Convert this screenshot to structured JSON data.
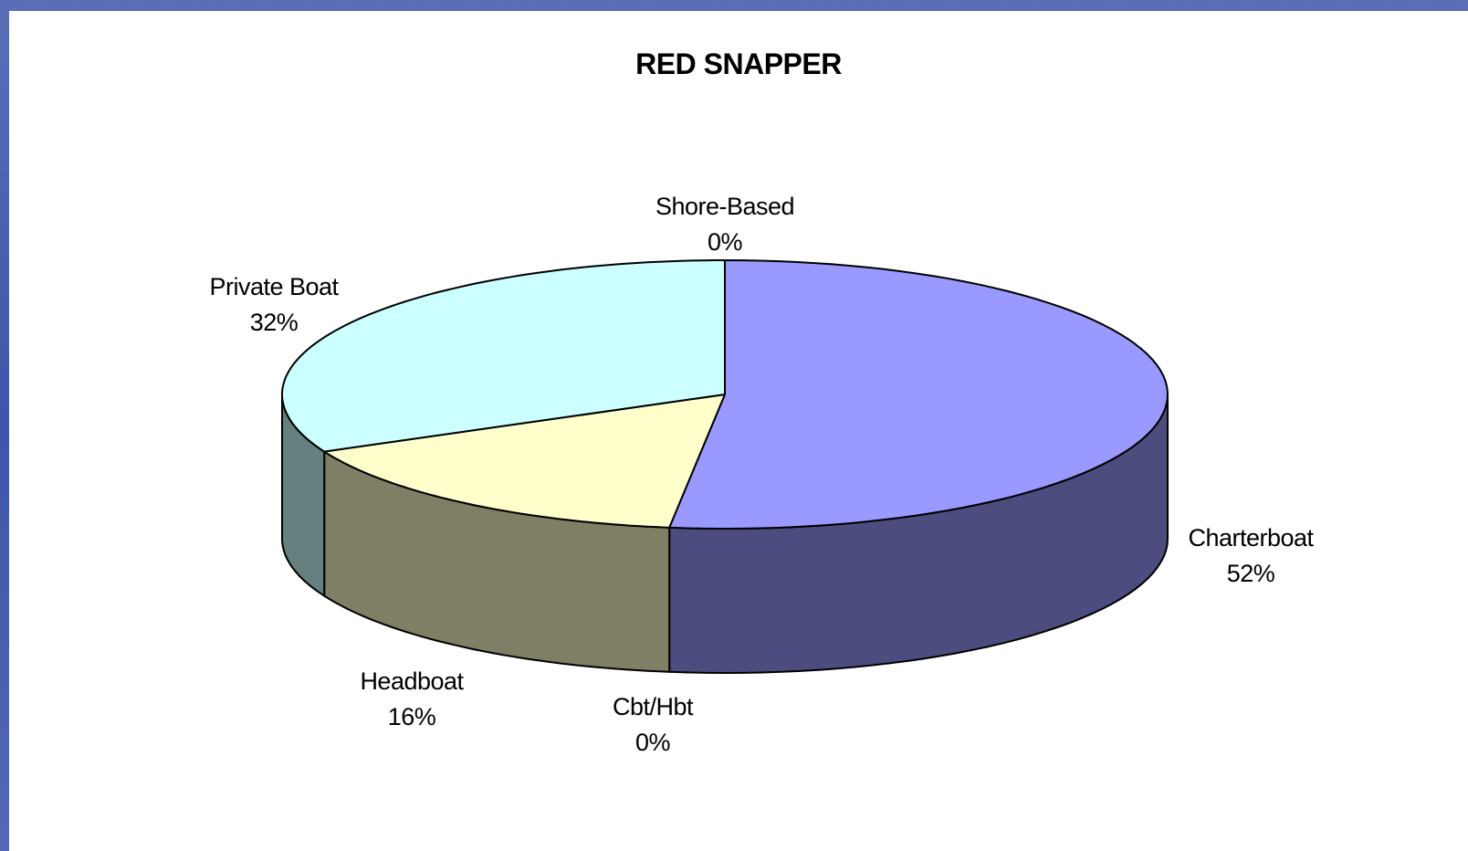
{
  "chart_data": {
    "type": "pie",
    "title": "RED SNAPPER",
    "slices": [
      {
        "name": "Charterboat",
        "value": 52,
        "label": "52%",
        "color": "#9999ff",
        "side_color": "#4c4c7f"
      },
      {
        "name": "Cbt/Hbt",
        "value": 0,
        "label": "0%",
        "color": "#ffffff",
        "side_color": "#7f7f7f"
      },
      {
        "name": "Headboat",
        "value": 16,
        "label": "16%",
        "color": "#ffffcc",
        "side_color": "#7f7f66"
      },
      {
        "name": "Private Boat",
        "value": 32,
        "label": "32%",
        "color": "#ccffff",
        "side_color": "#667f7f"
      },
      {
        "name": "Shore-Based",
        "value": 0,
        "label": "0%",
        "color": "#ffffff",
        "side_color": "#7f7f7f"
      }
    ]
  }
}
